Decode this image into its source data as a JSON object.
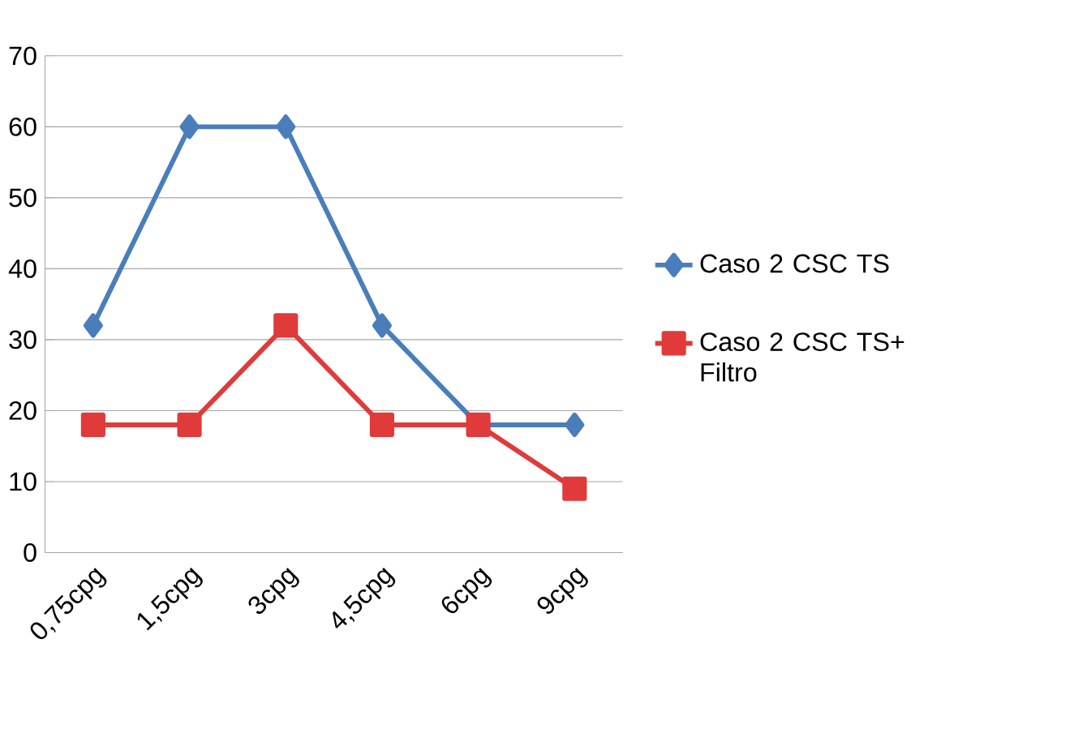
{
  "chart_data": {
    "type": "line",
    "categories": [
      "0,75cpg",
      "1,5cpg",
      "3cpg",
      "4,5cpg",
      "6cpg",
      "9cpg"
    ],
    "series": [
      {
        "name": "Caso 2 CSC TS",
        "color": "#4a7ebb",
        "marker": "diamond",
        "values": [
          32,
          60,
          60,
          32,
          18,
          18
        ]
      },
      {
        "name": "Caso 2 CSC TS+ Filtro",
        "color": "#e03a3a",
        "marker": "square",
        "values": [
          18,
          18,
          32,
          18,
          18,
          9
        ]
      }
    ],
    "ylim": [
      0,
      70
    ],
    "yticks": [
      0,
      10,
      20,
      30,
      40,
      50,
      60,
      70
    ],
    "grid": "y",
    "legend": "right"
  }
}
